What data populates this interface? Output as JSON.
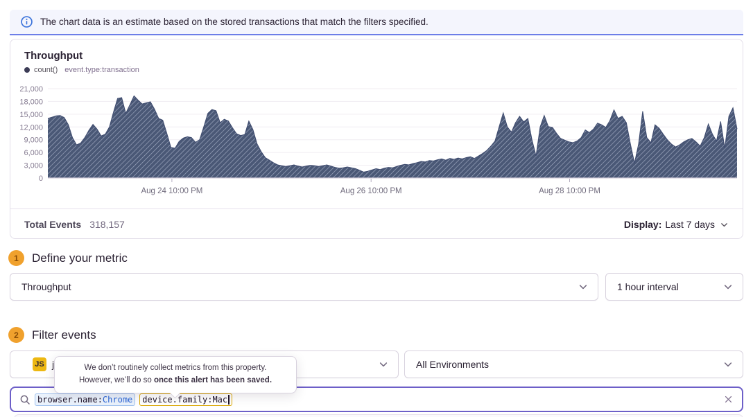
{
  "banner": {
    "text": "The chart data is an estimate based on the stored transactions that match the filters specified."
  },
  "chart_panel": {
    "title": "Throughput",
    "legend": {
      "aggregate": "count()",
      "query": "event.type:transaction"
    },
    "footer": {
      "total_label": "Total Events",
      "total_value": "318,157",
      "display_label": "Display:",
      "display_value": "Last 7 days"
    }
  },
  "chart_data": {
    "type": "area",
    "title": "Throughput",
    "series": [
      {
        "name": "count()",
        "values": [
          14000,
          14300,
          14600,
          14700,
          14200,
          12500,
          9500,
          7800,
          8200,
          9500,
          11200,
          12600,
          11500,
          9900,
          10300,
          12000,
          15500,
          18700,
          18900,
          15200,
          17200,
          19300,
          18300,
          17400,
          17700,
          17900,
          16200,
          14000,
          13600,
          10500,
          7200,
          7000,
          8600,
          9400,
          9700,
          9500,
          8400,
          9000,
          12000,
          15200,
          16100,
          15800,
          13000,
          13800,
          13400,
          11800,
          10400,
          10000,
          10200,
          13400,
          11400,
          8000,
          6200,
          4800,
          4200,
          3600,
          3100,
          2900,
          2700,
          2900,
          3100,
          2800,
          2600,
          2800,
          3000,
          2900,
          2700,
          2900,
          3100,
          2800,
          2500,
          2300,
          2400,
          2600,
          2400,
          2200,
          1800,
          1400,
          1600,
          1900,
          2200,
          2000,
          2300,
          2500,
          2400,
          2700,
          3000,
          3200,
          3100,
          3400,
          3600,
          3900,
          3800,
          4100,
          4000,
          4300,
          4500,
          4200,
          4600,
          4400,
          4700,
          4500,
          4800,
          5000,
          4600,
          5200,
          5800,
          6500,
          7500,
          8700,
          12000,
          15300,
          12000,
          10800,
          13000,
          14500,
          13200,
          14000,
          9000,
          5200,
          12000,
          14700,
          12100,
          11900,
          10500,
          9300,
          8900,
          8500,
          8300,
          8700,
          9500,
          11300,
          10700,
          11500,
          12900,
          12500,
          11900,
          13500,
          16000,
          14000,
          14500,
          13000,
          8000,
          3500,
          8000,
          15700,
          9500,
          8300,
          12500,
          11700,
          10300,
          9000,
          8000,
          7300,
          7800,
          8500,
          9000,
          9300,
          8500,
          7500,
          9500,
          12700,
          10300,
          8700,
          13300,
          7000,
          14500,
          16500,
          11500
        ]
      }
    ],
    "xlabel": "",
    "ylabel": "",
    "ylim": [
      0,
      21000
    ],
    "grid": true,
    "legend_position": "top-left",
    "y_ticks": [
      {
        "value": 0,
        "label": "0"
      },
      {
        "value": 3000,
        "label": "3,000"
      },
      {
        "value": 6000,
        "label": "6,000"
      },
      {
        "value": 9000,
        "label": "9,000"
      },
      {
        "value": 12000,
        "label": "12,000"
      },
      {
        "value": 15000,
        "label": "15,000"
      },
      {
        "value": 18000,
        "label": "18,000"
      },
      {
        "value": 21000,
        "label": "21,000"
      }
    ],
    "x_ticks": [
      {
        "label": "Aug 24 10:00 PM",
        "pos": 0.18
      },
      {
        "label": "Aug 26 10:00 PM",
        "pos": 0.469
      },
      {
        "label": "Aug 28 10:00 PM",
        "pos": 0.757
      }
    ],
    "colors": {
      "area_fill": "#4a5876",
      "hatch_line": "#a3adc4",
      "top_stroke": "#3d4a6e",
      "gridline": "#f0edf2",
      "baseline": "#d8d0dd"
    }
  },
  "metric_section": {
    "step": "1",
    "title": "Define your metric",
    "metric_value": "Throughput",
    "interval_value": "1 hour interval"
  },
  "filter_section": {
    "step": "2",
    "title": "Filter events",
    "project_badge": "JS",
    "project_name": "j",
    "environment_value": "All Environments"
  },
  "tooltip": {
    "line1": "We don’t routinely collect metrics from this property.",
    "line2_prefix": "However, we’ll do so ",
    "line2_bold": "once this alert has been saved."
  },
  "search": {
    "tokens": [
      {
        "key": "browser.name:",
        "value": "Chrome"
      },
      {
        "key": "device.family:",
        "value": "Mac"
      }
    ]
  }
}
